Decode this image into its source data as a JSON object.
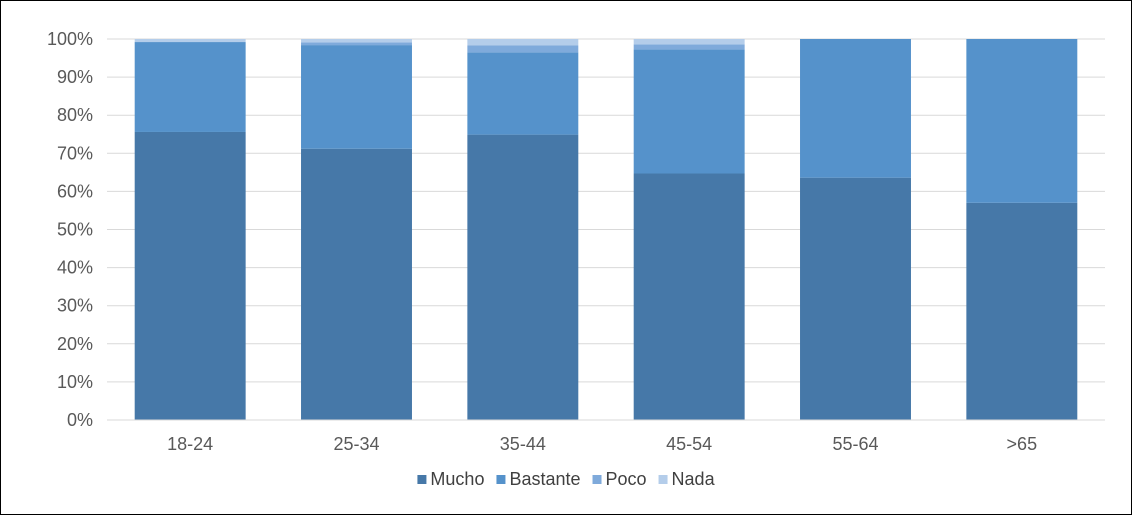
{
  "chart_data": {
    "type": "bar",
    "stacked": true,
    "percent_stacked": true,
    "title": "",
    "xlabel": "",
    "ylabel": "",
    "categories": [
      "18-24",
      "25-34",
      "35-44",
      "45-54",
      "55-64",
      ">65"
    ],
    "series": [
      {
        "name": "Mucho",
        "values": [
          75.6,
          71.2,
          74.9,
          64.7,
          63.6,
          57.0
        ]
      },
      {
        "name": "Bastante",
        "values": [
          23.6,
          27.2,
          21.6,
          32.6,
          36.4,
          43.0
        ]
      },
      {
        "name": "Poco",
        "values": [
          0.0,
          0.7,
          1.8,
          1.3,
          0.0,
          0.0
        ]
      },
      {
        "name": "Nada",
        "values": [
          0.8,
          0.9,
          1.7,
          1.4,
          0.0,
          0.0
        ]
      }
    ],
    "ylim": [
      0,
      100
    ],
    "y_ticks": [
      "0%",
      "10%",
      "20%",
      "30%",
      "40%",
      "50%",
      "60%",
      "70%",
      "80%",
      "90%",
      "100%"
    ],
    "grid": true,
    "legend_position": "bottom",
    "colors": {
      "Mucho": "#4678A8",
      "Bastante": "#5592CB",
      "Poco": "#7FAADB",
      "Nada": "#B4CDEA"
    }
  }
}
